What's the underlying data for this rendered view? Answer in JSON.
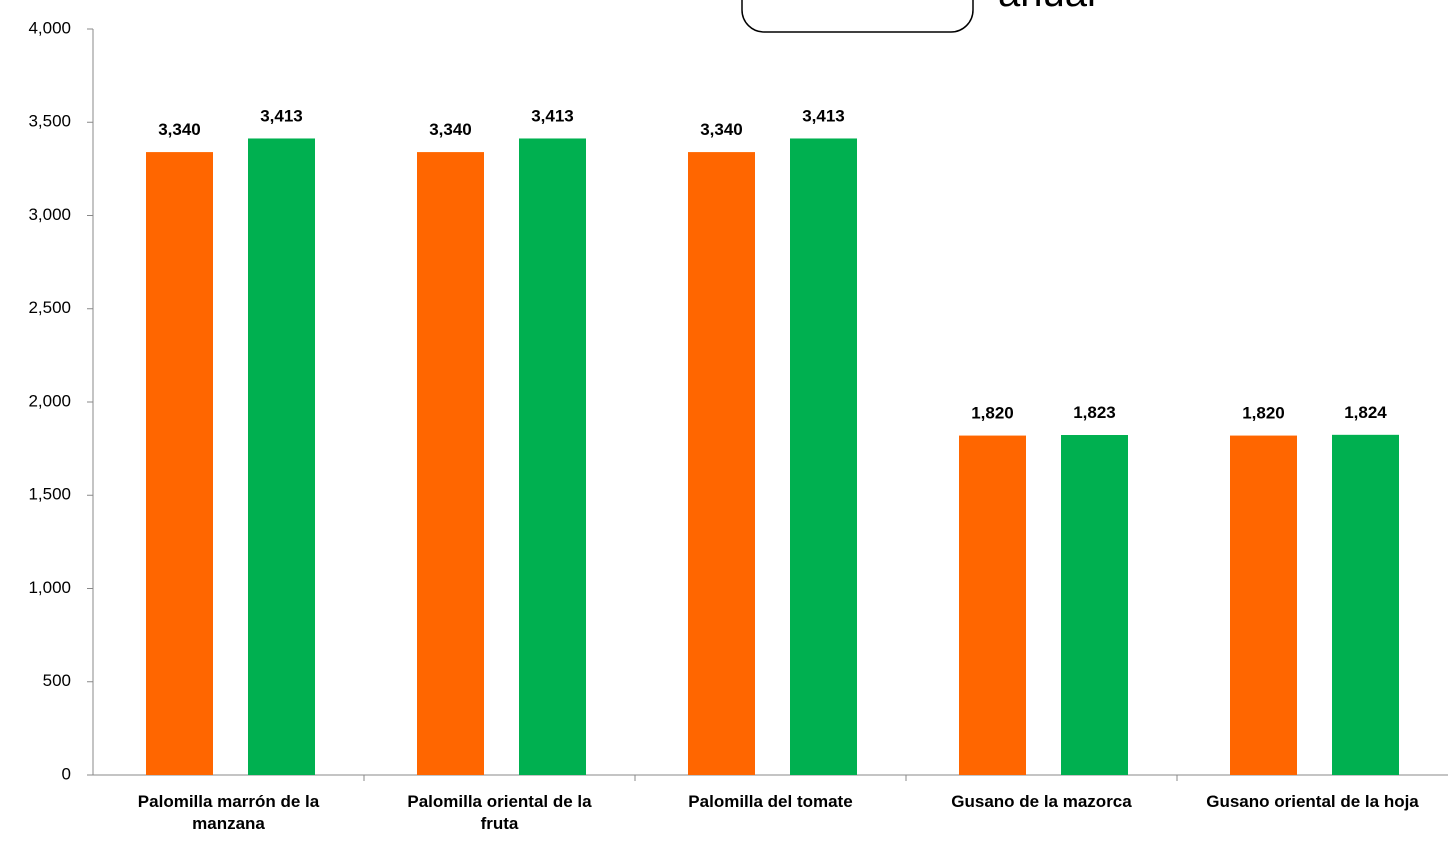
{
  "chart_data": {
    "type": "bar",
    "annotation": "anual",
    "categories": [
      "Palomilla marrón de la manzana",
      "Palomilla oriental de la fruta",
      "Palomilla del tomate",
      "Gusano de la mazorca",
      "Gusano oriental de la hoja"
    ],
    "series": [
      {
        "color": "#ff6600",
        "values": [
          3340,
          3340,
          3340,
          1820,
          1820
        ],
        "value_labels": [
          "3,340",
          "3,340",
          "3,340",
          "1,820",
          "1,820"
        ]
      },
      {
        "color": "#00b050",
        "values": [
          3413,
          3413,
          3413,
          1823,
          1824
        ],
        "value_labels": [
          "3,413",
          "3,413",
          "3,413",
          "1,823",
          "1,824"
        ]
      }
    ],
    "ylim": [
      0,
      4000
    ],
    "yticks": [
      0,
      500,
      {
        "value": 1000,
        "label": "1,000"
      },
      {
        "value": 1500,
        "label": "1,500"
      },
      {
        "value": 2000,
        "label": "2,000"
      },
      {
        "value": 2500,
        "label": "2,500"
      },
      {
        "value": 3000,
        "label": "3,000"
      },
      {
        "value": 3500,
        "label": "3,500"
      },
      {
        "value": 4000,
        "label": "4,000"
      }
    ],
    "grid": false
  }
}
